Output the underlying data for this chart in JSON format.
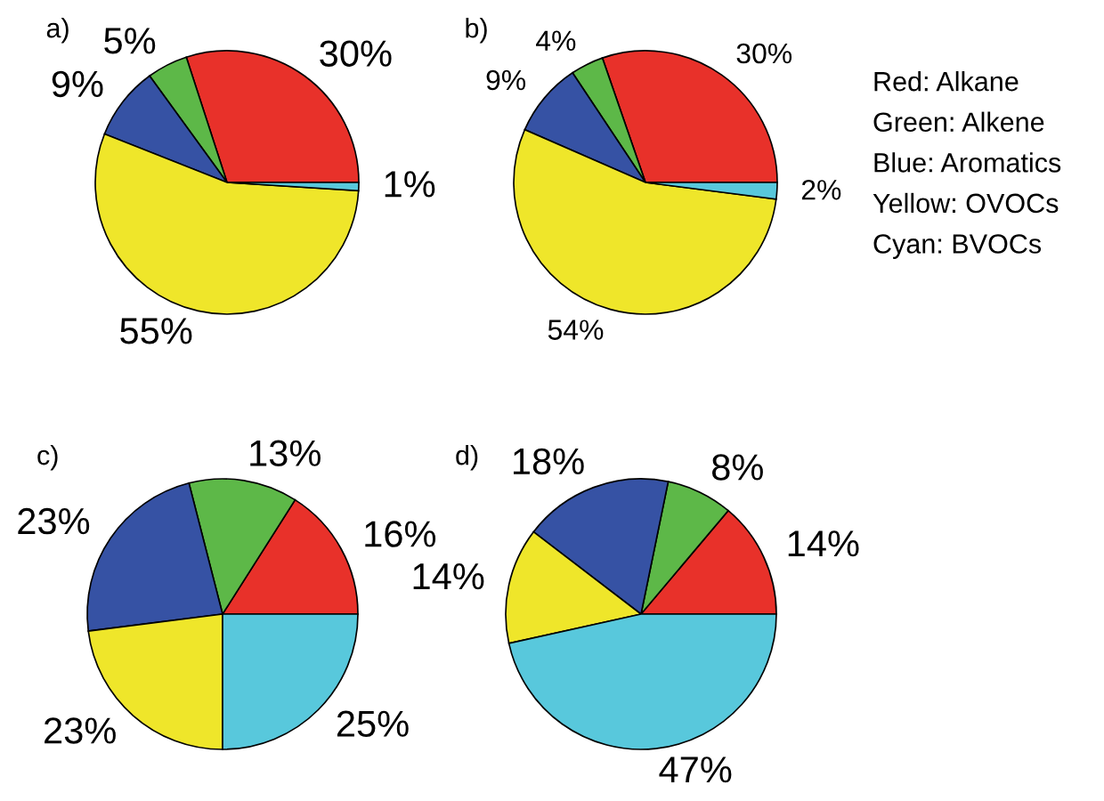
{
  "chart_data": [
    {
      "type": "pie",
      "title": "a)",
      "categories": [
        null,
        null,
        null,
        null,
        null
      ],
      "values": [
        30,
        5,
        9,
        55,
        1
      ],
      "value_labels": [
        "30%",
        "5%",
        "9%",
        "55%",
        "1%"
      ],
      "colors": [
        "#e8312a",
        "#5db848",
        "#3652a4",
        "#efe62a",
        "#58c8dc"
      ]
    },
    {
      "type": "pie",
      "title": "b)",
      "categories": [
        null,
        null,
        null,
        null,
        null
      ],
      "values": [
        30,
        4,
        9,
        54,
        2
      ],
      "value_labels": [
        "30%",
        "4%",
        "9%",
        "54%",
        "2%"
      ],
      "colors": [
        "#e8312a",
        "#5db848",
        "#3652a4",
        "#efe62a",
        "#58c8dc"
      ]
    },
    {
      "type": "pie",
      "title": "c)",
      "categories": [
        null,
        null,
        null,
        null,
        null
      ],
      "values": [
        16,
        13,
        23,
        23,
        25
      ],
      "value_labels": [
        "16%",
        "13%",
        "23%",
        "23%",
        "25%"
      ],
      "colors": [
        "#e8312a",
        "#5db848",
        "#3652a4",
        "#efe62a",
        "#58c8dc"
      ]
    },
    {
      "type": "pie",
      "title": "d)",
      "categories": [
        null,
        null,
        null,
        null,
        null
      ],
      "values": [
        14,
        8,
        18,
        14,
        47
      ],
      "value_labels": [
        "14%",
        "8%",
        "18%",
        "14%",
        "47%"
      ],
      "colors": [
        "#e8312a",
        "#5db848",
        "#3652a4",
        "#efe62a",
        "#58c8dc"
      ]
    },
    {
      "type": "other",
      "annotations": [
        "Red: Alkane",
        "Green: Alkene",
        "Blue: Aromatics",
        "Yellow: OVOCs",
        "Cyan: BVOCs"
      ]
    }
  ]
}
